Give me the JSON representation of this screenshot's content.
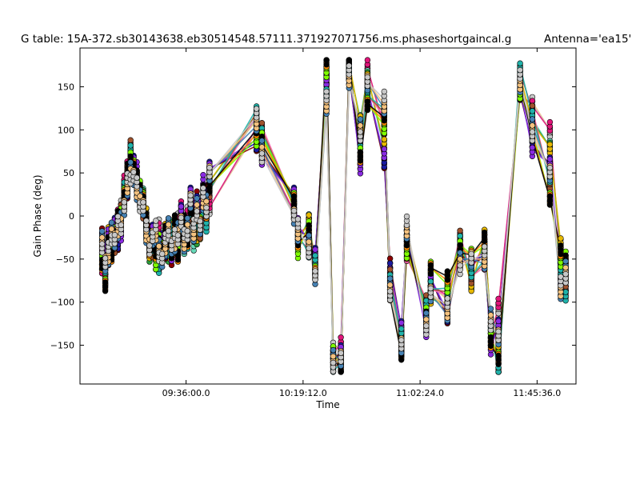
{
  "chart_data": {
    "type": "scatter",
    "title": "G table: 15A-372.sb30143638.eb30514548.57111.371927071756.ms.phaseshortgaincal.g",
    "antenna_label": "Antenna='ea15'",
    "xlabel": "Time",
    "ylabel": "Gain Phase (deg)",
    "x_ticks": [
      "09:36:00.0",
      "10:19:12.0",
      "11:02:24.0",
      "11:45:36.0"
    ],
    "x_tick_seconds": [
      34560,
      37152,
      39744,
      42336
    ],
    "y_ticks": [
      -150,
      -100,
      -50,
      0,
      50,
      100,
      150
    ],
    "xlim_seconds": [
      32210,
      43198
    ],
    "ylim": [
      -195,
      195
    ],
    "grid": false,
    "connected": true,
    "marker": "circle",
    "colors": [
      "#f4c27f",
      "#c8c8c8",
      "#e0157a",
      "#66d9b8",
      "#2a9d3c",
      "#e6b800",
      "#8b0000",
      "#1a1aa0",
      "#8a2be2",
      "#ff69b4",
      "#a0522d",
      "#20b2aa",
      "#7fff00",
      "#ff8c00",
      "#000000",
      "#4682b4"
    ],
    "time_seconds": [
      32700,
      32770,
      32840,
      32910,
      32980,
      33050,
      33120,
      33190,
      33260,
      33330,
      33400,
      33470,
      33540,
      33610,
      33680,
      33750,
      33820,
      33890,
      33960,
      34030,
      34100,
      34170,
      34240,
      34310,
      34380,
      34450,
      34520,
      34590,
      34660,
      34730,
      34800,
      34870,
      34940,
      35010,
      35080,
      36120,
      36240,
      36950,
      37040,
      37280,
      37420,
      37670,
      37820,
      37990,
      38170,
      38420,
      38580,
      38950,
      39080,
      39330,
      39450,
      39880,
      39980,
      40350,
      40630,
      40880,
      41170,
      41310,
      41480,
      41960,
      42230,
      42620,
      42860,
      42970
    ],
    "series": [
      {
        "name": "",
        "values": [
          -60,
          -72,
          -40,
          -30,
          -20,
          2,
          10,
          38,
          58,
          62,
          55,
          45,
          30,
          12,
          -5,
          -28,
          -40,
          -42,
          -12,
          -35,
          -28,
          -12,
          -30,
          -18,
          -5,
          8,
          -22,
          3,
          12,
          -12,
          -8,
          0,
          8,
          -2,
          10,
          100,
          80,
          5,
          -22,
          -10,
          -50,
          160,
          -155,
          -150,
          172,
          80,
          172,
          100,
          -75,
          -155,
          -30,
          -120,
          -80,
          -95,
          -42,
          -62,
          -35,
          -140,
          -105,
          140,
          130,
          100,
          -55,
          -80
        ]
      },
      {
        "name": "",
        "values": [
          -35,
          -50,
          -22,
          -15,
          -32,
          -20,
          -5,
          22,
          40,
          70,
          48,
          35,
          15,
          25,
          0,
          -45,
          -30,
          -50,
          -55,
          -40,
          -18,
          -45,
          -12,
          -32,
          -25,
          0,
          -32,
          -10,
          5,
          -28,
          -25,
          -20,
          15,
          20,
          40,
          115,
          95,
          10,
          -30,
          -5,
          -60,
          165,
          -162,
          -165,
          176,
          110,
          162,
          80,
          -82,
          -145,
          -20,
          -110,
          -95,
          -105,
          -30,
          -80,
          -25,
          -125,
          -150,
          160,
          110,
          80,
          -35,
          -70
        ]
      },
      {
        "name": "",
        "values": [
          -25,
          -40,
          -28,
          -35,
          -10,
          -30,
          -18,
          15,
          30,
          55,
          62,
          50,
          28,
          15,
          -15,
          -22,
          -18,
          -35,
          -45,
          -28,
          -40,
          -22,
          -48,
          -25,
          -35,
          5,
          -18,
          -20,
          25,
          5,
          18,
          10,
          35,
          25,
          55,
          85,
          70,
          25,
          -15,
          -25,
          -45,
          150,
          -170,
          -158,
          168,
          60,
          148,
          65,
          -60,
          -130,
          -25,
          -130,
          -72,
          -115,
          -48,
          -55,
          -45,
          -150,
          -128,
          145,
          80,
          60,
          -75,
          -60
        ]
      },
      {
        "name": "",
        "values": [
          -45,
          -65,
          -50,
          -25,
          -35,
          -10,
          5,
          30,
          45,
          80,
          52,
          38,
          22,
          5,
          -10,
          -28,
          -40,
          -30,
          -58,
          -45,
          -32,
          -38,
          -20,
          -40,
          -15,
          -10,
          -25,
          -30,
          2,
          -20,
          -5,
          -18,
          5,
          -10,
          30,
          120,
          100,
          15,
          -25,
          -40,
          -55,
          140,
          -175,
          -172,
          165,
          90,
          140,
          120,
          -70,
          -140,
          -45,
          -100,
          -85,
          -88,
          -25,
          -70,
          -55,
          -132,
          -180,
          170,
          120,
          40,
          -65,
          -90
        ]
      },
      {
        "name": "",
        "values": [
          -55,
          -80,
          -35,
          -45,
          -20,
          -5,
          0,
          25,
          50,
          65,
          58,
          42,
          32,
          20,
          -8,
          -38,
          -32,
          -48,
          -30,
          -38,
          -22,
          -28,
          -42,
          -10,
          -45,
          -20,
          -10,
          -28,
          10,
          -5,
          2,
          -8,
          25,
          5,
          35,
          95,
          88,
          20,
          -35,
          -15,
          -65,
          175,
          -160,
          -178,
          178,
          70,
          130,
          110,
          -90,
          -160,
          -35,
          -115,
          -60,
          -75,
          -38,
          -45,
          -30,
          -145,
          -165,
          150,
          95,
          20,
          -45,
          -50
        ]
      },
      {
        "name": "",
        "values": [
          -30,
          -55,
          -45,
          -20,
          -28,
          -15,
          -8,
          10,
          35,
          50,
          45,
          30,
          18,
          10,
          -20,
          -32,
          -25,
          -20,
          -40,
          -50,
          -35,
          -15,
          -35,
          -30,
          -20,
          -8,
          -30,
          -15,
          18,
          -18,
          8,
          -12,
          18,
          12,
          50,
          110,
          75,
          0,
          -18,
          -35,
          -70,
          130,
          -168,
          -165,
          160,
          100,
          155,
          130,
          -85,
          -150,
          -15,
          -125,
          -90,
          -110,
          -55,
          -50,
          -50,
          -120,
          -140,
          155,
          100,
          50,
          -85,
          -65
        ]
      }
    ]
  }
}
